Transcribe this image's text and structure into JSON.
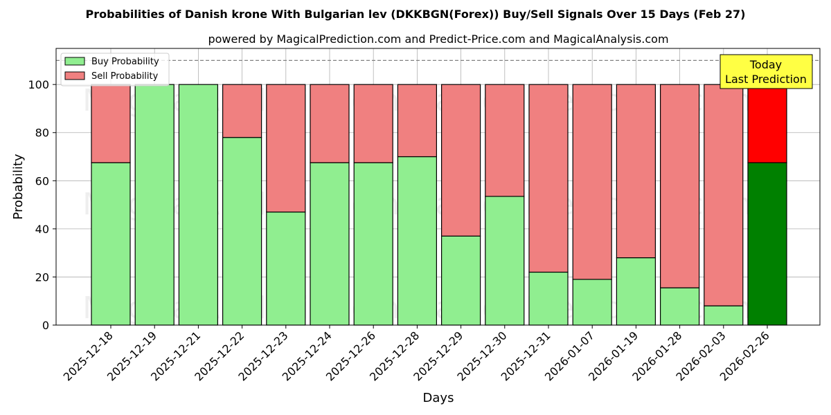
{
  "title": "Probabilities of Danish krone With Bulgarian lev (DKKBGN(Forex)) Buy/Sell Signals Over 15 Days (Feb 27)",
  "subtitle": "powered by MagicalPrediction.com and Predict-Price.com and MagicalAnalysis.com",
  "watermarks": [
    "MagicalAnalysis.com",
    "MagicalPrediction.com"
  ],
  "annotation": {
    "line1": "Today",
    "line2": "Last Prediction"
  },
  "colors": {
    "buy": "#90ee90",
    "sell": "#f08080",
    "today_buy": "#008000",
    "today_sell": "#ff0000",
    "annotation_bg": "#ffff44"
  },
  "chart_data": {
    "type": "bar",
    "stacked": true,
    "title": "Probabilities of Danish krone With Bulgarian lev (DKKBGN(Forex)) Buy/Sell Signals Over 15 Days (Feb 27)",
    "xlabel": "Days",
    "ylabel": "Probability",
    "ylim": [
      0,
      115
    ],
    "yticks": [
      0,
      20,
      40,
      60,
      80,
      100
    ],
    "reference_line": 110,
    "grid": true,
    "legend_position": "top-left",
    "categories": [
      "2025-12-18",
      "2025-12-19",
      "2025-12-21",
      "2025-12-22",
      "2025-12-23",
      "2025-12-24",
      "2025-12-26",
      "2025-12-28",
      "2025-12-29",
      "2025-12-30",
      "2025-12-31",
      "2026-01-07",
      "2026-01-19",
      "2026-01-28",
      "2026-02-03",
      "2026-02-26"
    ],
    "series": [
      {
        "name": "Buy Probability",
        "values": [
          67.5,
          100,
          100,
          78,
          47,
          67.5,
          67.5,
          70,
          37,
          53.5,
          22,
          19,
          28,
          15.5,
          8,
          67.5
        ]
      },
      {
        "name": "Sell Probability",
        "values": [
          32.5,
          0,
          0,
          22,
          53,
          32.5,
          32.5,
          30,
          63,
          46.5,
          78,
          81,
          72,
          84.5,
          92,
          32.5
        ]
      }
    ]
  }
}
